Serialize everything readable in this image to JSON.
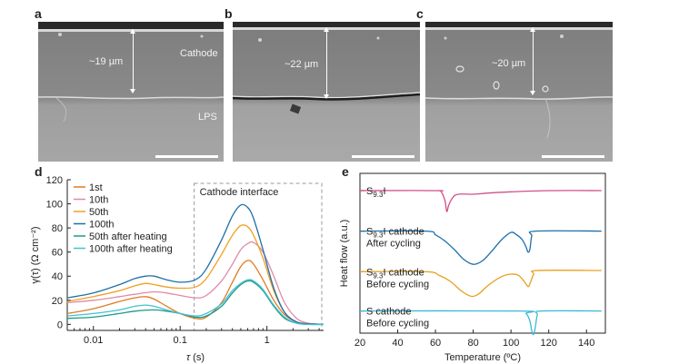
{
  "panels": {
    "a": {
      "letter": "a",
      "thickness_label": "~19 µm",
      "cathode_label": "Cathode",
      "lps_label": "LPS"
    },
    "b": {
      "letter": "b",
      "thickness_label": "~22 µm"
    },
    "c": {
      "letter": "c",
      "thickness_label": "~20 µm"
    }
  },
  "colors": {
    "1st": "#e07b24",
    "10th": "#e08aa6",
    "50th": "#f0a020",
    "100th": "#1f6fa8",
    "50th_heat": "#1a9a8a",
    "100th_heat": "#44c0d0",
    "s93i": "#d0508a",
    "s93i_cathode_after": "#1f6fa8",
    "s93i_cathode_before": "#e8a020",
    "s_cathode": "#3ab8d8"
  },
  "chart_data": [
    {
      "panel": "d",
      "type": "line",
      "xscale": "log",
      "xlabel_sym": "τ",
      "xlabel_unit": " (s)",
      "ylabel": "γ(τ) (Ω cm⁻²)",
      "xlim": [
        0.005,
        4.5
      ],
      "ylim": [
        -5,
        120
      ],
      "xticks": [
        0.01,
        0.1,
        1
      ],
      "xtick_labels": [
        "0.01",
        "0.1",
        "1"
      ],
      "yticks": [
        0,
        20,
        40,
        60,
        80,
        100,
        120
      ],
      "ytick_labels": [
        "0",
        "20",
        "40",
        "60",
        "80",
        "100",
        "120"
      ],
      "annotation": "Cathode interface",
      "legend": "top-left",
      "series": [
        {
          "name": "1st",
          "color": "#e07b24",
          "points": [
            [
              0.005,
              9
            ],
            [
              0.01,
              13
            ],
            [
              0.02,
              19
            ],
            [
              0.03,
              22
            ],
            [
              0.04,
              23
            ],
            [
              0.05,
              21
            ],
            [
              0.07,
              15
            ],
            [
              0.1,
              9
            ],
            [
              0.15,
              5
            ],
            [
              0.2,
              6
            ],
            [
              0.3,
              18
            ],
            [
              0.4,
              35
            ],
            [
              0.5,
              48
            ],
            [
              0.6,
              53
            ],
            [
              0.7,
              50
            ],
            [
              0.9,
              37
            ],
            [
              1.2,
              20
            ],
            [
              1.6,
              8
            ],
            [
              2.2,
              2
            ],
            [
              3,
              0.5
            ],
            [
              4.5,
              0
            ]
          ]
        },
        {
          "name": "10th",
          "color": "#e08aa6",
          "points": [
            [
              0.005,
              18
            ],
            [
              0.01,
              20
            ],
            [
              0.02,
              23
            ],
            [
              0.03,
              25
            ],
            [
              0.05,
              27
            ],
            [
              0.07,
              26
            ],
            [
              0.1,
              24
            ],
            [
              0.15,
              22
            ],
            [
              0.2,
              24
            ],
            [
              0.3,
              36
            ],
            [
              0.4,
              50
            ],
            [
              0.5,
              62
            ],
            [
              0.6,
              67
            ],
            [
              0.7,
              68
            ],
            [
              0.9,
              60
            ],
            [
              1.2,
              40
            ],
            [
              1.6,
              18
            ],
            [
              2.2,
              5
            ],
            [
              3,
              1
            ],
            [
              4.5,
              0
            ]
          ]
        },
        {
          "name": "50th",
          "color": "#f0a020",
          "points": [
            [
              0.005,
              19
            ],
            [
              0.01,
              23
            ],
            [
              0.02,
              28
            ],
            [
              0.03,
              32
            ],
            [
              0.04,
              34
            ],
            [
              0.05,
              33
            ],
            [
              0.07,
              31
            ],
            [
              0.1,
              30
            ],
            [
              0.15,
              31
            ],
            [
              0.2,
              38
            ],
            [
              0.3,
              58
            ],
            [
              0.4,
              74
            ],
            [
              0.5,
              82
            ],
            [
              0.6,
              81
            ],
            [
              0.7,
              74
            ],
            [
              0.9,
              55
            ],
            [
              1.2,
              28
            ],
            [
              1.6,
              10
            ],
            [
              2.2,
              2
            ],
            [
              3,
              0.5
            ],
            [
              4.5,
              0
            ]
          ]
        },
        {
          "name": "100th",
          "color": "#1f6fa8",
          "points": [
            [
              0.005,
              22
            ],
            [
              0.01,
              26
            ],
            [
              0.02,
              33
            ],
            [
              0.03,
              38
            ],
            [
              0.04,
              40
            ],
            [
              0.05,
              40
            ],
            [
              0.07,
              37
            ],
            [
              0.1,
              35
            ],
            [
              0.15,
              37
            ],
            [
              0.2,
              46
            ],
            [
              0.3,
              70
            ],
            [
              0.4,
              90
            ],
            [
              0.5,
              99
            ],
            [
              0.6,
              97
            ],
            [
              0.7,
              88
            ],
            [
              0.9,
              62
            ],
            [
              1.2,
              30
            ],
            [
              1.6,
              10
            ],
            [
              2.2,
              2
            ],
            [
              3,
              0.5
            ],
            [
              4.5,
              0
            ]
          ]
        },
        {
          "name": "50th after heating",
          "color": "#1a9a8a",
          "points": [
            [
              0.005,
              5
            ],
            [
              0.01,
              6
            ],
            [
              0.02,
              9
            ],
            [
              0.03,
              11
            ],
            [
              0.05,
              12
            ],
            [
              0.07,
              11
            ],
            [
              0.1,
              9
            ],
            [
              0.15,
              6
            ],
            [
              0.2,
              7
            ],
            [
              0.3,
              15
            ],
            [
              0.4,
              26
            ],
            [
              0.5,
              33
            ],
            [
              0.6,
              36
            ],
            [
              0.7,
              35
            ],
            [
              0.9,
              28
            ],
            [
              1.2,
              15
            ],
            [
              1.6,
              5
            ],
            [
              2.2,
              1
            ],
            [
              3,
              0
            ],
            [
              4.5,
              0
            ]
          ]
        },
        {
          "name": "100th after heating",
          "color": "#44c0d0",
          "points": [
            [
              0.005,
              7
            ],
            [
              0.01,
              9
            ],
            [
              0.02,
              12
            ],
            [
              0.03,
              15
            ],
            [
              0.04,
              16
            ],
            [
              0.05,
              15
            ],
            [
              0.07,
              12
            ],
            [
              0.1,
              9
            ],
            [
              0.15,
              7
            ],
            [
              0.2,
              9
            ],
            [
              0.3,
              17
            ],
            [
              0.4,
              28
            ],
            [
              0.5,
              34
            ],
            [
              0.6,
              37
            ],
            [
              0.7,
              36
            ],
            [
              0.9,
              29
            ],
            [
              1.2,
              16
            ],
            [
              1.6,
              6
            ],
            [
              2.2,
              1
            ],
            [
              3,
              0
            ],
            [
              4.5,
              0
            ]
          ]
        }
      ]
    },
    {
      "panel": "e",
      "type": "line",
      "xlabel": "Temperature (ºC)",
      "ylabel": "Heat flow (a.u.)",
      "xlim": [
        20,
        150
      ],
      "xticks": [
        20,
        40,
        60,
        80,
        100,
        120,
        140
      ],
      "xtick_labels": [
        "20",
        "40",
        "60",
        "80",
        "100",
        "120",
        "140"
      ],
      "series": [
        {
          "name": "S9.3I",
          "label_main": "S",
          "label_sub": "9.3",
          "label_tail": "I",
          "label_line2": "",
          "color": "#d0508a",
          "points": [
            [
              20,
              116
            ],
            [
              60,
              116
            ],
            [
              63,
              115
            ],
            [
              65,
              108
            ],
            [
              66,
              99
            ],
            [
              67,
              104
            ],
            [
              69,
              110
            ],
            [
              72,
              113
            ],
            [
              80,
              113
            ],
            [
              88,
              114
            ],
            [
              100,
              115
            ],
            [
              120,
              116
            ],
            [
              148,
              116
            ]
          ]
        },
        {
          "name": "S9.3I cathode After cycling",
          "label_main": "S",
          "label_sub": "9.3",
          "label_tail": "I cathode",
          "label_line2": "After cycling",
          "color": "#1f6fa8",
          "points": [
            [
              20,
              83
            ],
            [
              55,
              83
            ],
            [
              60,
              80
            ],
            [
              65,
              75
            ],
            [
              70,
              68
            ],
            [
              75,
              60
            ],
            [
              80,
              56
            ],
            [
              85,
              59
            ],
            [
              90,
              67
            ],
            [
              95,
              76
            ],
            [
              100,
              82
            ],
            [
              103,
              80
            ],
            [
              106,
              76
            ],
            [
              108,
              70
            ],
            [
              109,
              66
            ],
            [
              110,
              68
            ],
            [
              111,
              79
            ],
            [
              113,
              83
            ],
            [
              148,
              83
            ]
          ]
        },
        {
          "name": "S9.3I cathode Before cycling",
          "label_main": "S",
          "label_sub": "9.3",
          "label_tail": "I cathode",
          "label_line2": "Before cycling",
          "color": "#e8a020",
          "points": [
            [
              20,
              50
            ],
            [
              55,
              50
            ],
            [
              62,
              47
            ],
            [
              68,
              42
            ],
            [
              74,
              34
            ],
            [
              79,
              30
            ],
            [
              83,
              32
            ],
            [
              88,
              39
            ],
            [
              95,
              46
            ],
            [
              100,
              48
            ],
            [
              104,
              47
            ],
            [
              107,
              42
            ],
            [
              109,
              38
            ],
            [
              110,
              40
            ],
            [
              112,
              48
            ],
            [
              114,
              51
            ],
            [
              148,
              51
            ]
          ]
        },
        {
          "name": "S cathode Before cycling",
          "label_main": "S cathode",
          "label_sub": "",
          "label_tail": "",
          "label_line2": "Before cycling",
          "color": "#3ab8d8",
          "points": [
            [
              20,
              18
            ],
            [
              105,
              18
            ],
            [
              108,
              16
            ],
            [
              110,
              10
            ],
            [
              111,
              2
            ],
            [
              112,
              -1
            ],
            [
              113,
              6
            ],
            [
              114,
              15
            ],
            [
              116,
              18
            ],
            [
              148,
              18
            ]
          ]
        }
      ]
    }
  ]
}
